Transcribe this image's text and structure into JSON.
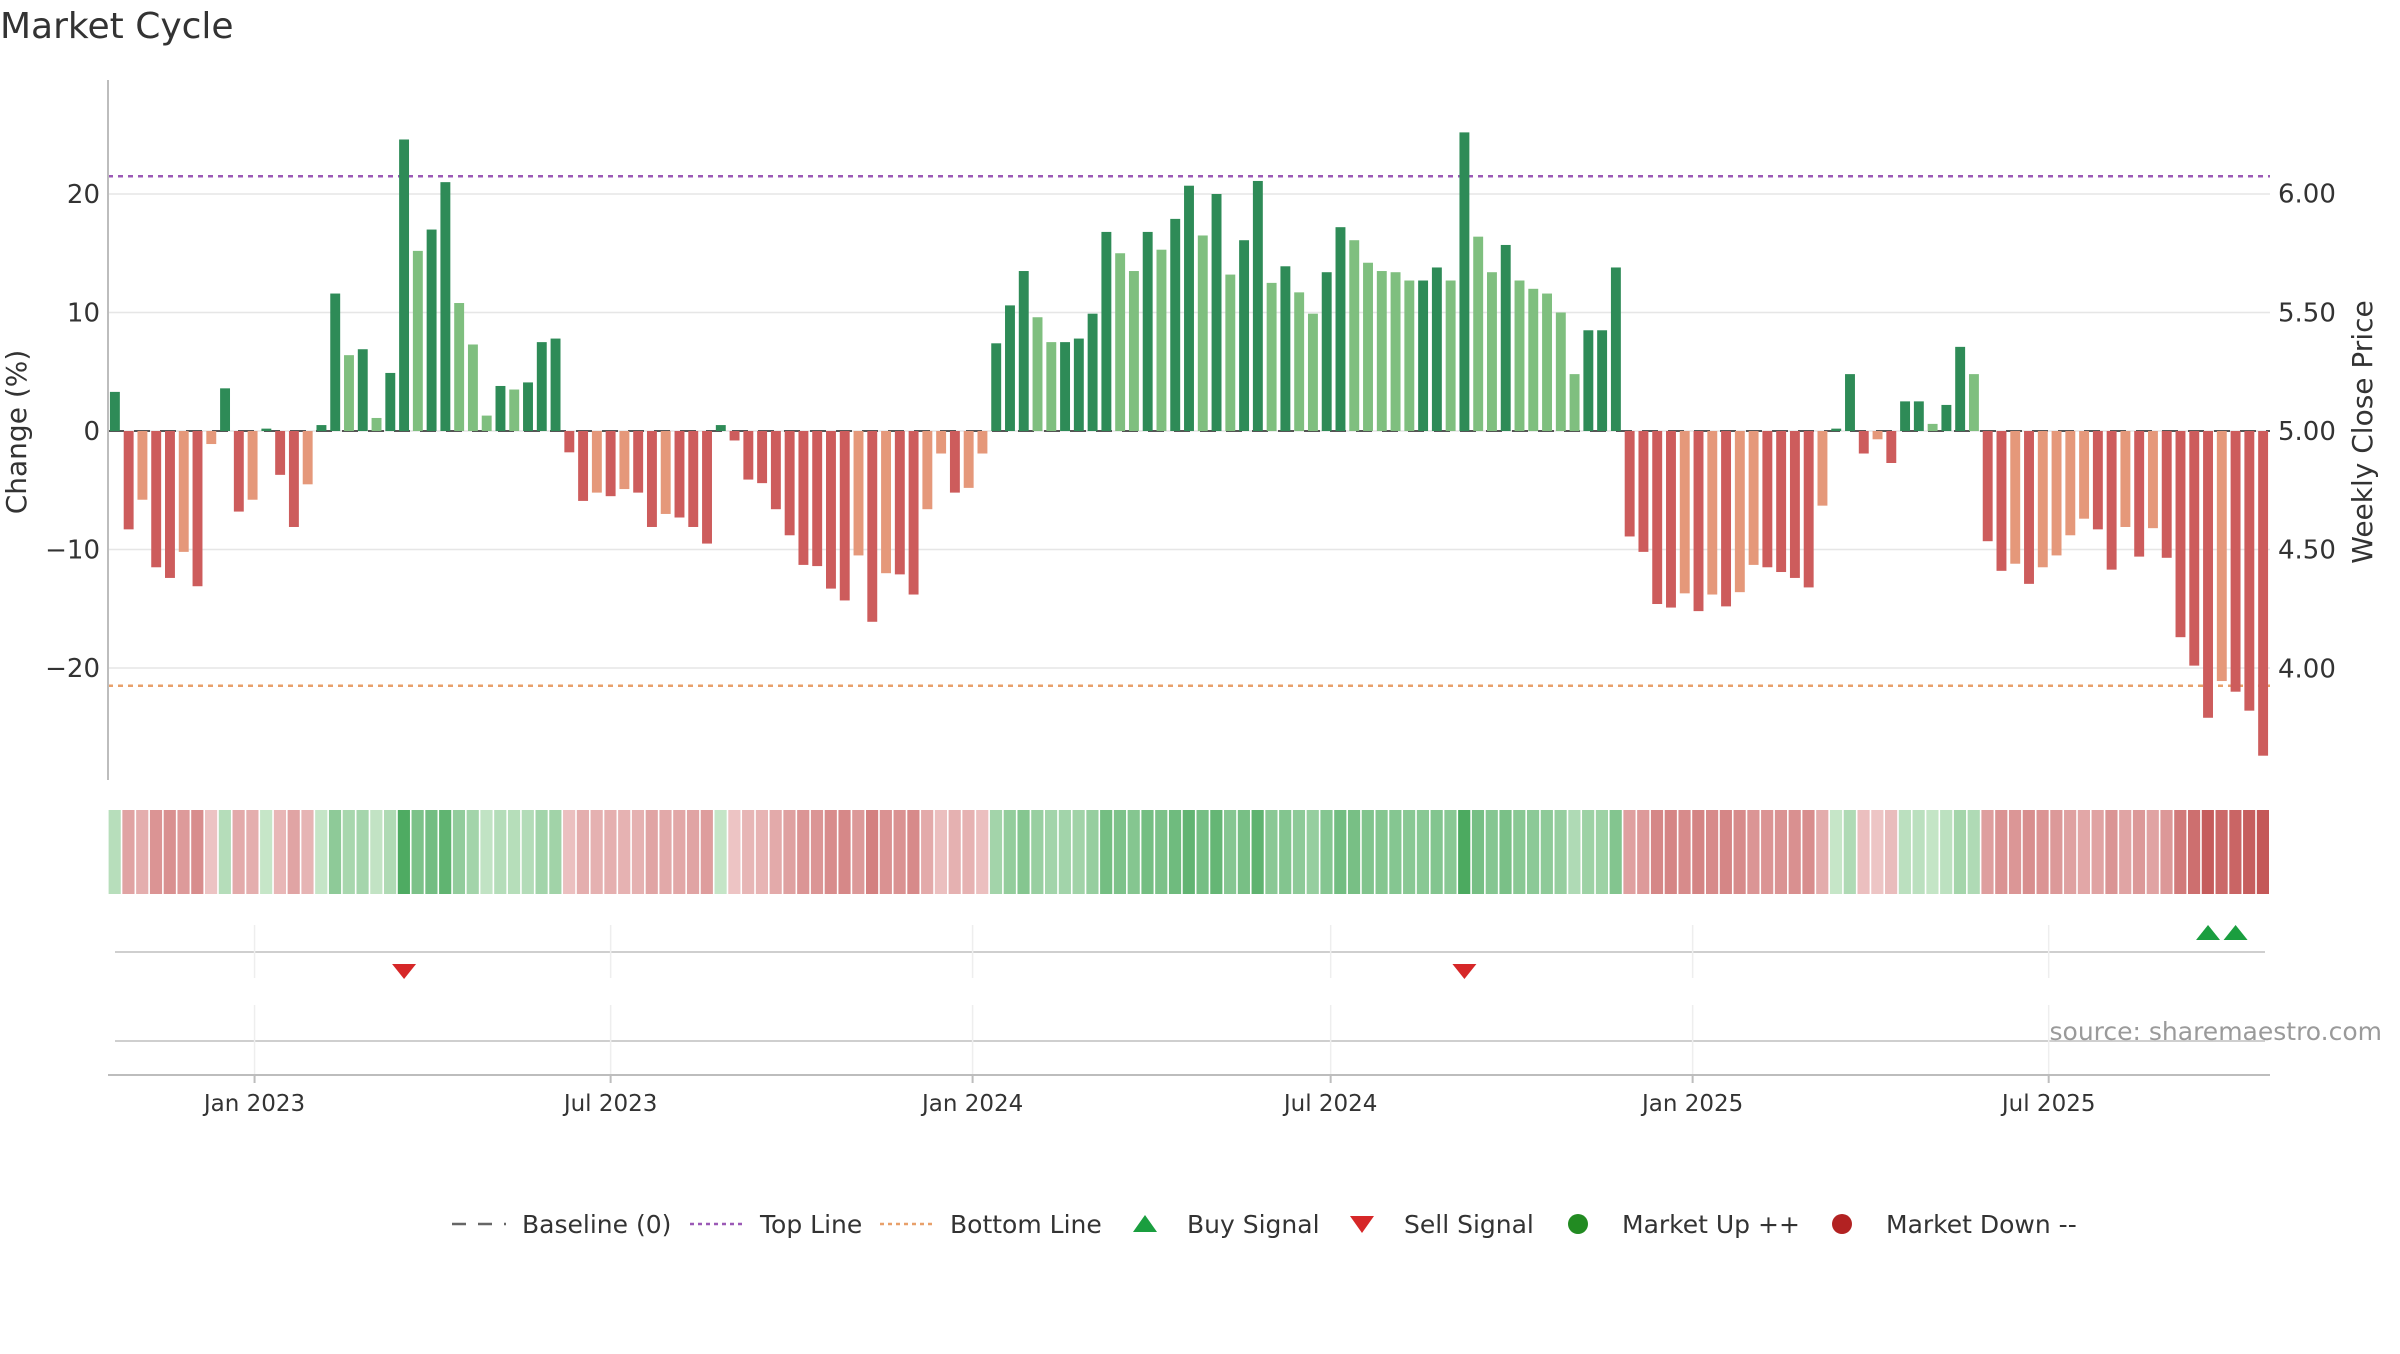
{
  "title": "Market Cycle",
  "source_text": "source: sharemaestro.com",
  "colors": {
    "strong_up": "#2e8b57",
    "up": "#7fbf7f",
    "down": "#e5987a",
    "strong_down": "#cd5c5c",
    "top_line": "#9b59b6",
    "bottom_line": "#e8a06a",
    "baseline": "#555555",
    "buy": "#1a9e3f",
    "sell": "#d62728",
    "market_up": "#228b22",
    "market_down": "#b22222"
  },
  "legend": [
    {
      "label": "Baseline (0)",
      "kind": "dash",
      "color": "#666666"
    },
    {
      "label": "Top Line",
      "kind": "dot",
      "color": "#9b59b6"
    },
    {
      "label": "Bottom Line",
      "kind": "dot",
      "color": "#e8a06a"
    },
    {
      "label": "Buy Signal",
      "kind": "tri-up",
      "color": "#1a9e3f"
    },
    {
      "label": "Sell Signal",
      "kind": "tri-down",
      "color": "#d62728"
    },
    {
      "label": "Market Up ++",
      "kind": "circle",
      "color": "#228b22"
    },
    {
      "label": "Market Down --",
      "kind": "circle",
      "color": "#b22222"
    }
  ],
  "chart_data": {
    "type": "bar",
    "title": "Market Cycle",
    "ylabel": "Change (%)",
    "y2label": "Weekly Close Price",
    "ylim": [
      -30,
      30
    ],
    "y2lim": [
      3.55,
      6.4
    ],
    "yticks": [
      20,
      10,
      0,
      -10,
      -20
    ],
    "ytick_labels": [
      "20",
      "10",
      "0",
      "−10",
      "−20"
    ],
    "y2ticks": [
      6.0,
      5.5,
      5.0,
      4.5,
      4.0
    ],
    "y2tick_labels": [
      "6.00",
      "5.50",
      "5.00",
      "4.50",
      "4.00"
    ],
    "x_start": "2022-10-22",
    "x_step_days": 7,
    "x_ticks": [
      {
        "date": "2023-01-01",
        "label": "Jan 2023"
      },
      {
        "date": "2023-07-01",
        "label": "Jul 2023"
      },
      {
        "date": "2024-01-01",
        "label": "Jan 2024"
      },
      {
        "date": "2024-07-01",
        "label": "Jul 2024"
      },
      {
        "date": "2025-01-01",
        "label": "Jan 2025"
      },
      {
        "date": "2025-07-01",
        "label": "Jul 2025"
      }
    ],
    "top_line": 21.5,
    "bottom_line": -21.5,
    "values": [
      3.3,
      -8.3,
      -5.8,
      -11.5,
      -12.4,
      -10.2,
      -13.1,
      -1.1,
      3.6,
      -6.8,
      -5.8,
      0.2,
      -3.7,
      -8.1,
      -4.5,
      0.5,
      11.6,
      6.4,
      6.9,
      1.1,
      4.9,
      24.6,
      15.2,
      17.0,
      21.0,
      10.8,
      7.3,
      1.3,
      3.8,
      3.5,
      4.1,
      7.5,
      7.8,
      -1.8,
      -5.9,
      -5.2,
      -5.5,
      -4.9,
      -5.2,
      -8.1,
      -7.0,
      -7.3,
      -8.1,
      -9.5,
      0.5,
      -0.8,
      -4.1,
      -4.4,
      -6.6,
      -8.8,
      -11.3,
      -11.4,
      -13.3,
      -14.3,
      -10.5,
      -16.1,
      -12.0,
      -12.1,
      -13.8,
      -6.6,
      -1.9,
      -5.2,
      -4.8,
      -1.9,
      7.4,
      10.6,
      13.5,
      9.6,
      7.5,
      7.5,
      7.8,
      9.9,
      16.8,
      15.0,
      13.5,
      16.8,
      15.3,
      17.9,
      20.7,
      16.5,
      20.0,
      13.2,
      16.1,
      21.1,
      12.5,
      13.9,
      11.7,
      9.9,
      13.4,
      17.2,
      16.1,
      14.2,
      13.5,
      13.4,
      12.7,
      12.7,
      13.8,
      12.7,
      25.2,
      16.4,
      13.4,
      15.7,
      12.7,
      12.0,
      11.6,
      10.0,
      4.8,
      8.5,
      8.5,
      13.8,
      -8.9,
      -10.2,
      -14.6,
      -14.9,
      -13.7,
      -15.2,
      -13.8,
      -14.8,
      -13.6,
      -11.3,
      -11.5,
      -11.9,
      -12.4,
      -13.2,
      -6.3,
      0.2,
      4.8,
      -1.9,
      -0.7,
      -2.7,
      2.5,
      2.5,
      0.6,
      2.2,
      7.1,
      4.8,
      -9.3,
      -11.8,
      -11.2,
      -12.9,
      -11.5,
      -10.5,
      -8.8,
      -7.4,
      -8.3,
      -11.7,
      -8.1,
      -10.6,
      -8.2,
      -10.7,
      -17.4,
      -19.8,
      -24.2,
      -21.1,
      -22.0,
      -23.6,
      -27.4
    ],
    "price_line_note": "",
    "heat_strip": true,
    "signals": [
      {
        "type": "sell",
        "index": 21
      },
      {
        "type": "sell",
        "index": 98
      },
      {
        "type": "buy",
        "index": 152
      },
      {
        "type": "buy",
        "index": 154
      }
    ],
    "grid": true,
    "legend_position": "bottom-center"
  }
}
